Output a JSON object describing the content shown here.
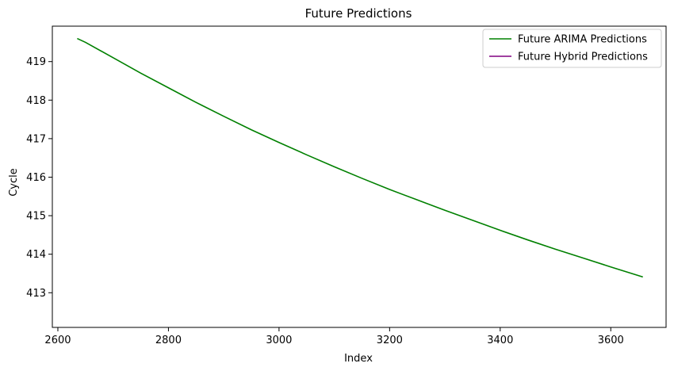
{
  "chart_data": {
    "type": "line",
    "title": "Future Predictions",
    "xlabel": "Index",
    "ylabel": "Cycle",
    "xlim": [
      2590,
      3700
    ],
    "ylim": [
      412.1,
      419.92
    ],
    "xticks": [
      2600,
      2800,
      3000,
      3200,
      3400,
      3600
    ],
    "yticks": [
      413,
      414,
      415,
      416,
      417,
      418,
      419
    ],
    "grid": false,
    "legend_position": "top-right",
    "series": [
      {
        "name": "Future ARIMA Predictions",
        "color": "#008000",
        "x": [
          2635,
          2650,
          2700,
          2750,
          2800,
          2850,
          2900,
          2950,
          3000,
          3050,
          3100,
          3150,
          3200,
          3250,
          3300,
          3350,
          3400,
          3450,
          3500,
          3550,
          3600,
          3658
        ],
        "y": [
          419.6,
          419.5,
          419.1,
          418.7,
          418.32,
          417.94,
          417.58,
          417.23,
          416.9,
          416.58,
          416.27,
          415.97,
          415.68,
          415.41,
          415.14,
          414.88,
          414.62,
          414.37,
          414.13,
          413.9,
          413.67,
          413.41
        ]
      },
      {
        "name": "Future Hybrid Predictions",
        "color": "#800080",
        "x": [],
        "y": []
      }
    ]
  }
}
